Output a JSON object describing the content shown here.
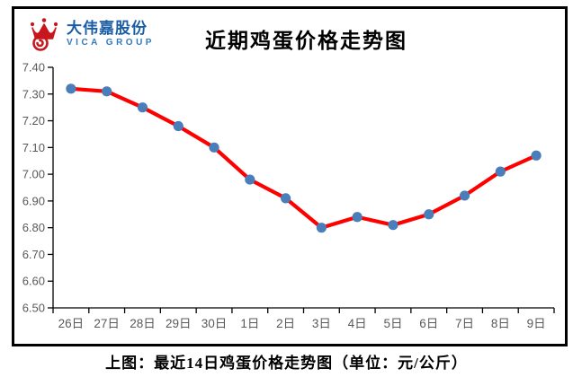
{
  "logo": {
    "icon": "crown-icon",
    "company_cn": "大伟嘉股份",
    "company_en": "VICA GROUP",
    "icon_color": "#c8161d",
    "cn_color": "#1a5da6",
    "en_color": "#3379be"
  },
  "header": {
    "title": "近期鸡蛋价格走势图"
  },
  "caption": "上图：最近14日鸡蛋价格走势图（单位：元/公斤）",
  "chart_data": {
    "type": "line",
    "title": "近期鸡蛋价格走势图",
    "categories": [
      "26日",
      "27日",
      "28日",
      "29日",
      "30日",
      "1日",
      "2日",
      "3日",
      "4日",
      "5日",
      "6日",
      "7日",
      "8日",
      "9日"
    ],
    "values": [
      7.32,
      7.31,
      7.25,
      7.18,
      7.1,
      6.98,
      6.91,
      6.8,
      6.84,
      6.81,
      6.85,
      6.92,
      7.01,
      7.07
    ],
    "unit": "元/公斤",
    "xlabel": "",
    "ylabel": "",
    "ylim": [
      6.5,
      7.4
    ],
    "ytick_step": 0.1,
    "ytick_decimals": 2,
    "grid": false,
    "legend": "none",
    "line_color": "#fe0000",
    "marker_color": "#4a7ebb",
    "axis_color": "#000000",
    "tick_label_color": "#595959"
  }
}
